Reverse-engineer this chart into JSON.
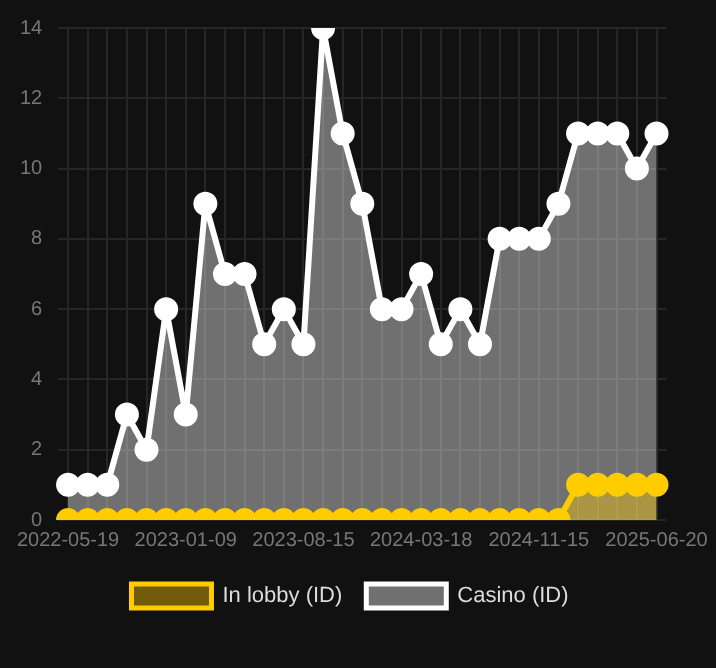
{
  "chart_data": {
    "type": "area",
    "categories": [
      "2022-05-19",
      null,
      null,
      null,
      null,
      null,
      "2023-01-09",
      null,
      null,
      null,
      null,
      null,
      "2023-08-15",
      null,
      null,
      null,
      null,
      null,
      "2024-03-18",
      null,
      null,
      null,
      null,
      null,
      "2024-11-15",
      null,
      null,
      null,
      null,
      null,
      "2025-06-20"
    ],
    "series": [
      {
        "name": "In lobby (ID)",
        "color": "#ffcc00",
        "values": [
          0,
          0,
          0,
          0,
          0,
          0,
          0,
          0,
          0,
          0,
          0,
          0,
          0,
          0,
          0,
          0,
          0,
          0,
          0,
          0,
          0,
          0,
          0,
          0,
          0,
          0,
          1,
          1,
          1,
          1,
          1
        ]
      },
      {
        "name": "Casino (ID)",
        "color": "#ffffff",
        "values": [
          1,
          1,
          1,
          3,
          2,
          6,
          3,
          9,
          7,
          7,
          5,
          6,
          5,
          14,
          11,
          9,
          6,
          6,
          7,
          5,
          6,
          5,
          8,
          8,
          8,
          9,
          11,
          11,
          11,
          10,
          11
        ]
      }
    ],
    "ylim": [
      0,
      14
    ],
    "yticks": [
      0,
      2,
      4,
      6,
      8,
      10,
      12,
      14
    ],
    "grid": true,
    "legend": "bottom",
    "marker": "circle",
    "line_style": "solid"
  }
}
